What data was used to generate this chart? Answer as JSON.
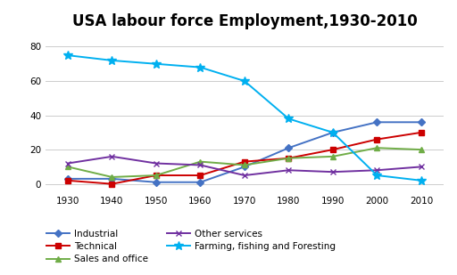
{
  "title": "USA labour force Employment,1930-2010",
  "years": [
    1930,
    1940,
    1950,
    1960,
    1970,
    1980,
    1990,
    2000,
    2010
  ],
  "series": [
    {
      "label": "Industrial",
      "values": [
        3,
        3,
        1,
        1,
        10,
        21,
        30,
        36,
        36
      ],
      "color": "#4472C4",
      "marker": "D"
    },
    {
      "label": "Technical",
      "values": [
        2,
        0,
        5,
        5,
        13,
        15,
        20,
        26,
        30
      ],
      "color": "#CC0000",
      "marker": "s"
    },
    {
      "label": "Sales and office",
      "values": [
        10,
        4,
        5,
        13,
        11,
        15,
        16,
        21,
        20
      ],
      "color": "#70AD47",
      "marker": "^"
    },
    {
      "label": "Other services",
      "values": [
        12,
        16,
        12,
        11,
        5,
        8,
        7,
        8,
        10
      ],
      "color": "#7030A0",
      "marker": "x"
    },
    {
      "label": "Farming, fishing and Foresting",
      "values": [
        75,
        72,
        70,
        68,
        60,
        38,
        30,
        5,
        2
      ],
      "color": "#00B0F0",
      "marker": "*"
    }
  ],
  "ylim": [
    -5,
    88
  ],
  "yticks": [
    0,
    20,
    40,
    60,
    80
  ],
  "background_color": "#FFFFFF",
  "title_fontsize": 12,
  "figsize": [
    5.12,
    3.09
  ],
  "dpi": 100
}
